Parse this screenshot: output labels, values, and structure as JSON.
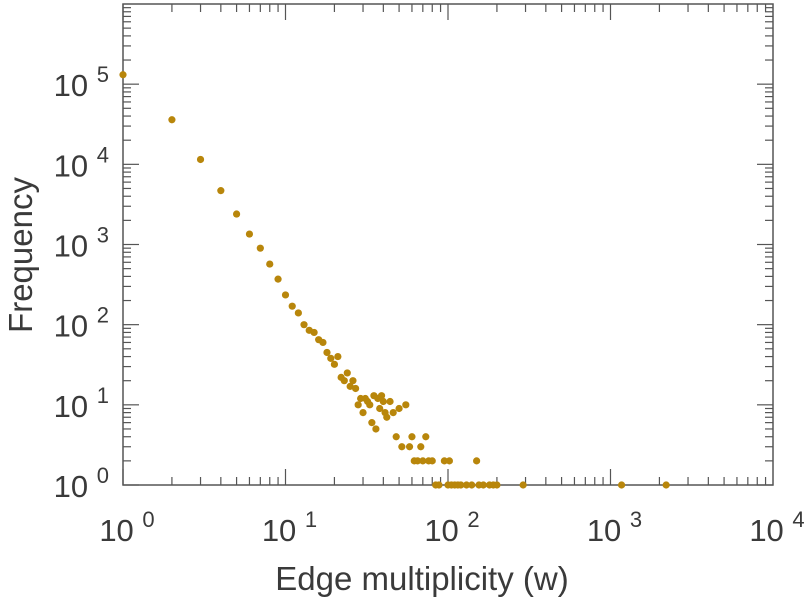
{
  "chart_data": {
    "type": "scatter",
    "xlabel": "Edge multiplicity (w)",
    "ylabel": "Frequency",
    "xscale": "log",
    "yscale": "log",
    "xlim": [
      1,
      10000
    ],
    "ylim": [
      1,
      1000000
    ],
    "grid": false,
    "x_ticks": [
      {
        "base": "10",
        "exp": "0"
      },
      {
        "base": "10",
        "exp": "1"
      },
      {
        "base": "10",
        "exp": "2"
      },
      {
        "base": "10",
        "exp": "3"
      },
      {
        "base": "10",
        "exp": "4"
      }
    ],
    "y_ticks": [
      {
        "base": "10",
        "exp": "0"
      },
      {
        "base": "10",
        "exp": "1"
      },
      {
        "base": "10",
        "exp": "2"
      },
      {
        "base": "10",
        "exp": "3"
      },
      {
        "base": "10",
        "exp": "4"
      },
      {
        "base": "10",
        "exp": "5"
      }
    ],
    "series": [
      {
        "color": "#b8860b",
        "points": [
          [
            1,
            131000
          ],
          [
            2,
            36000
          ],
          [
            3,
            11500
          ],
          [
            4,
            4700
          ],
          [
            5,
            2400
          ],
          [
            6,
            1350
          ],
          [
            7,
            900
          ],
          [
            8,
            570
          ],
          [
            9,
            370
          ],
          [
            10,
            235
          ],
          [
            11,
            170
          ],
          [
            12,
            140
          ],
          [
            13,
            100
          ],
          [
            14,
            85
          ],
          [
            15,
            80
          ],
          [
            16,
            65
          ],
          [
            17,
            60
          ],
          [
            18,
            45
          ],
          [
            19,
            38
          ],
          [
            20,
            32
          ],
          [
            21,
            40
          ],
          [
            22,
            22
          ],
          [
            23,
            20
          ],
          [
            24,
            25
          ],
          [
            25,
            17
          ],
          [
            26,
            20
          ],
          [
            27,
            16
          ],
          [
            28,
            10
          ],
          [
            29,
            12
          ],
          [
            30,
            8
          ],
          [
            31,
            12
          ],
          [
            32,
            11
          ],
          [
            33,
            10
          ],
          [
            34,
            6
          ],
          [
            35,
            13
          ],
          [
            36,
            5
          ],
          [
            37,
            12
          ],
          [
            38,
            9
          ],
          [
            39,
            13
          ],
          [
            40,
            11
          ],
          [
            41,
            8
          ],
          [
            42,
            7
          ],
          [
            44,
            11
          ],
          [
            46,
            8
          ],
          [
            48,
            4
          ],
          [
            50,
            9
          ],
          [
            52,
            3
          ],
          [
            55,
            10
          ],
          [
            58,
            3
          ],
          [
            60,
            4
          ],
          [
            62,
            2
          ],
          [
            65,
            2
          ],
          [
            68,
            3
          ],
          [
            70,
            2
          ],
          [
            73,
            4
          ],
          [
            76,
            2
          ],
          [
            80,
            2
          ],
          [
            84,
            1
          ],
          [
            88,
            1
          ],
          [
            95,
            2
          ],
          [
            100,
            1
          ],
          [
            102,
            2
          ],
          [
            105,
            1
          ],
          [
            110,
            1
          ],
          [
            115,
            1
          ],
          [
            120,
            1
          ],
          [
            130,
            1
          ],
          [
            140,
            1
          ],
          [
            150,
            2
          ],
          [
            155,
            1
          ],
          [
            165,
            1
          ],
          [
            180,
            1
          ],
          [
            190,
            1
          ],
          [
            200,
            1
          ],
          [
            290,
            1
          ],
          [
            1170,
            1
          ],
          [
            2200,
            1
          ]
        ]
      }
    ]
  }
}
